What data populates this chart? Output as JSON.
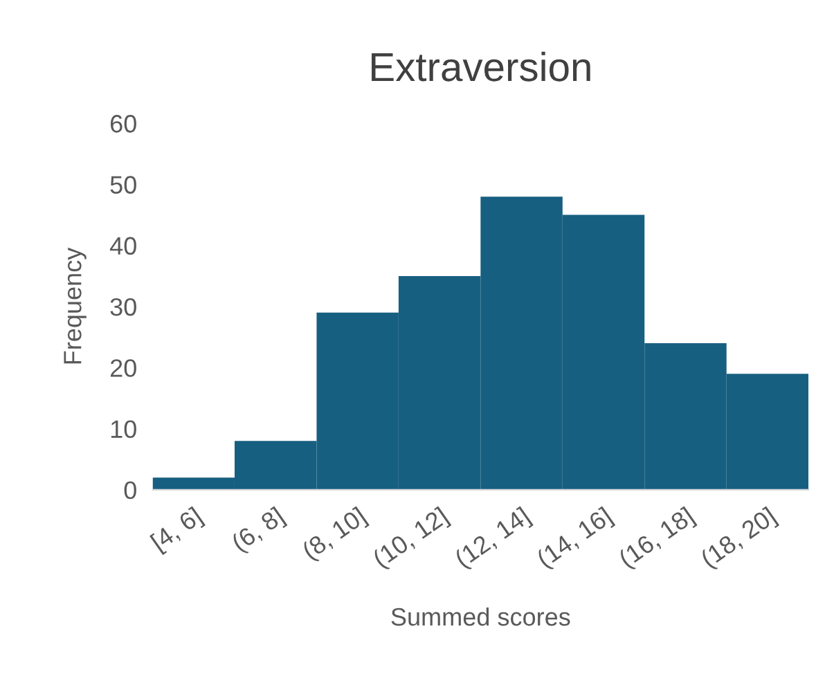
{
  "chart_data": {
    "type": "bar",
    "title": "Extraversion",
    "xlabel": "Summed scores",
    "ylabel": "Frequency",
    "categories": [
      "[4, 6]",
      "(6, 8]",
      "(8, 10]",
      "(10, 12]",
      "(12, 14]",
      "(14, 16]",
      "(16, 18]",
      "(18, 20]"
    ],
    "values": [
      2,
      8,
      29,
      35,
      48,
      45,
      24,
      19
    ],
    "color": "#175f81",
    "ylim": [
      0,
      60
    ],
    "yticks": [
      0,
      10,
      20,
      30,
      40,
      50,
      60
    ],
    "grid": false,
    "legend": false
  }
}
